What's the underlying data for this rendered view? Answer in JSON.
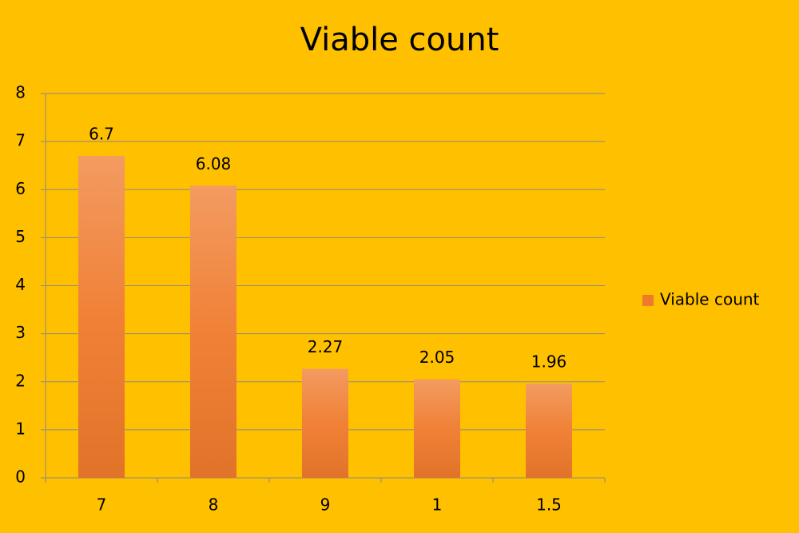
{
  "chart_data": {
    "type": "bar",
    "title": "Viable count",
    "categories": [
      "7",
      "8",
      "9",
      "1",
      "1.5"
    ],
    "series": [
      {
        "name": "Viable count",
        "color": "#ef7a2c",
        "values": [
          6.7,
          6.08,
          2.27,
          2.05,
          1.96
        ]
      }
    ],
    "ylim": [
      0,
      8
    ],
    "yticks": [
      0,
      1,
      2,
      3,
      4,
      5,
      6,
      7,
      8
    ],
    "grid": true,
    "legend": "right"
  }
}
